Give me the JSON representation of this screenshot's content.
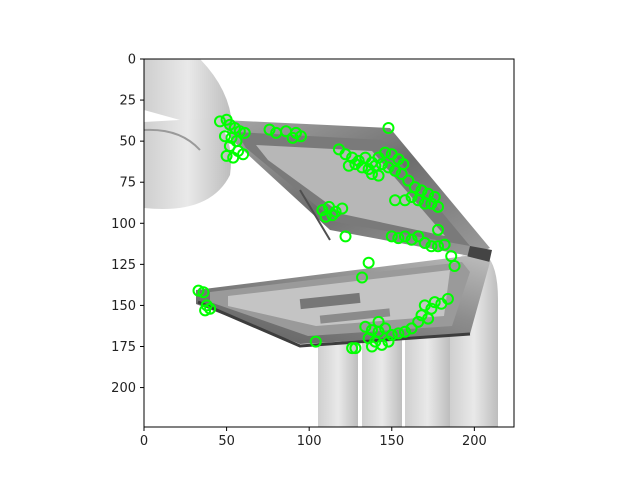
{
  "chart_data": {
    "type": "scatter",
    "xlim": [
      0,
      224
    ],
    "ylim": [
      224,
      0
    ],
    "x_ticks": [
      "0",
      "50",
      "100",
      "150",
      "200"
    ],
    "y_ticks": [
      "0",
      "25",
      "50",
      "75",
      "100",
      "125",
      "150",
      "175",
      "200"
    ],
    "grid": false,
    "series": [
      {
        "marker": "circle",
        "color": "#00ff00",
        "points": [
          [
            46,
            38
          ],
          [
            50,
            37
          ],
          [
            52,
            40
          ],
          [
            55,
            42
          ],
          [
            58,
            44
          ],
          [
            61,
            45
          ],
          [
            49,
            47
          ],
          [
            53,
            48
          ],
          [
            56,
            50
          ],
          [
            52,
            53
          ],
          [
            57,
            56
          ],
          [
            60,
            58
          ],
          [
            54,
            60
          ],
          [
            50,
            59
          ],
          [
            76,
            43
          ],
          [
            80,
            45
          ],
          [
            86,
            44
          ],
          [
            92,
            45
          ],
          [
            95,
            47
          ],
          [
            90,
            48
          ],
          [
            148,
            42
          ],
          [
            118,
            55
          ],
          [
            122,
            58
          ],
          [
            126,
            60
          ],
          [
            130,
            62
          ],
          [
            134,
            60
          ],
          [
            138,
            63
          ],
          [
            142,
            60
          ],
          [
            146,
            57
          ],
          [
            150,
            58
          ],
          [
            154,
            61
          ],
          [
            157,
            64
          ],
          [
            124,
            65
          ],
          [
            128,
            64
          ],
          [
            132,
            66
          ],
          [
            136,
            67
          ],
          [
            140,
            65
          ],
          [
            144,
            64
          ],
          [
            148,
            66
          ],
          [
            152,
            68
          ],
          [
            156,
            70
          ],
          [
            138,
            70
          ],
          [
            142,
            71
          ],
          [
            160,
            74
          ],
          [
            164,
            78
          ],
          [
            168,
            80
          ],
          [
            172,
            82
          ],
          [
            176,
            84
          ],
          [
            162,
            84
          ],
          [
            166,
            86
          ],
          [
            170,
            88
          ],
          [
            174,
            88
          ],
          [
            178,
            90
          ],
          [
            152,
            86
          ],
          [
            158,
            86
          ],
          [
            108,
            92
          ],
          [
            112,
            90
          ],
          [
            116,
            93
          ],
          [
            120,
            91
          ],
          [
            110,
            96
          ],
          [
            114,
            95
          ],
          [
            122,
            108
          ],
          [
            150,
            108
          ],
          [
            154,
            109
          ],
          [
            158,
            108
          ],
          [
            162,
            110
          ],
          [
            166,
            108
          ],
          [
            170,
            112
          ],
          [
            174,
            114
          ],
          [
            178,
            114
          ],
          [
            182,
            113
          ],
          [
            178,
            104
          ],
          [
            186,
            120
          ],
          [
            188,
            126
          ],
          [
            136,
            124
          ],
          [
            132,
            133
          ],
          [
            33,
            141
          ],
          [
            36,
            142
          ],
          [
            38,
            150
          ],
          [
            40,
            152
          ],
          [
            37,
            153
          ],
          [
            170,
            150
          ],
          [
            174,
            152
          ],
          [
            176,
            148
          ],
          [
            180,
            149
          ],
          [
            184,
            146
          ],
          [
            168,
            156
          ],
          [
            172,
            158
          ],
          [
            166,
            160
          ],
          [
            134,
            163
          ],
          [
            138,
            165
          ],
          [
            142,
            166
          ],
          [
            146,
            164
          ],
          [
            150,
            168
          ],
          [
            154,
            167
          ],
          [
            158,
            166
          ],
          [
            162,
            164
          ],
          [
            136,
            170
          ],
          [
            140,
            172
          ],
          [
            144,
            174
          ],
          [
            148,
            172
          ],
          [
            138,
            175
          ],
          [
            142,
            160
          ],
          [
            104,
            172
          ],
          [
            126,
            176
          ],
          [
            128,
            176
          ]
        ]
      }
    ]
  },
  "image": {
    "description": "grayscale photo: hands holding an opened flip phone with the back housing removed, green circle keypoint markers overlaid",
    "palette": {
      "bg": "#d0d0d0",
      "dark": "#3a3a3a",
      "mid": "#8a8a8a",
      "light": "#e6e6e6"
    }
  }
}
